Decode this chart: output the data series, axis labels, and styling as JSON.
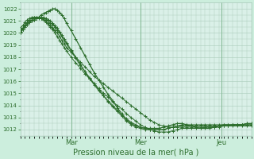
{
  "background_color": "#cceedd",
  "plot_bg_color": "#daf0e8",
  "grid_color": "#aaccbb",
  "line_color": "#2d6e2d",
  "marker_color": "#2d6e2d",
  "title": "Pression niveau de la mer( hPa )",
  "x_labels": [
    "Mar",
    "Mer",
    "Jeu"
  ],
  "ylim": [
    1011.5,
    1022.5
  ],
  "yticks": [
    1012,
    1013,
    1014,
    1015,
    1016,
    1017,
    1018,
    1019,
    1020,
    1021,
    1022
  ],
  "vline_x": [
    0.22,
    0.52,
    0.87
  ],
  "xlim": [
    0.0,
    1.0
  ],
  "lines": [
    [
      0.0,
      1020.2,
      0.01,
      1020.4,
      0.02,
      1020.7,
      0.03,
      1020.9,
      0.04,
      1021.1,
      0.05,
      1021.2,
      0.06,
      1021.3,
      0.07,
      1021.3,
      0.08,
      1021.3,
      0.09,
      1021.2,
      0.1,
      1021.1,
      0.11,
      1021.0,
      0.12,
      1020.8,
      0.13,
      1020.6,
      0.14,
      1020.4,
      0.15,
      1020.2,
      0.16,
      1020.0,
      0.17,
      1019.7,
      0.18,
      1019.4,
      0.19,
      1019.1,
      0.2,
      1018.8,
      0.22,
      1018.4,
      0.24,
      1018.0,
      0.26,
      1017.6,
      0.28,
      1017.2,
      0.3,
      1016.8,
      0.32,
      1016.4,
      0.34,
      1016.1,
      0.36,
      1015.8,
      0.38,
      1015.5,
      0.4,
      1015.2,
      0.42,
      1014.9,
      0.44,
      1014.6,
      0.46,
      1014.3,
      0.48,
      1014.0,
      0.5,
      1013.7,
      0.52,
      1013.4,
      0.54,
      1013.1,
      0.56,
      1012.8,
      0.58,
      1012.6,
      0.6,
      1012.4,
      0.62,
      1012.3,
      0.64,
      1012.2,
      0.66,
      1012.2,
      0.68,
      1012.2,
      0.7,
      1012.2,
      0.72,
      1012.2,
      0.74,
      1012.2,
      0.76,
      1012.2,
      0.78,
      1012.2,
      0.8,
      1012.2,
      0.82,
      1012.2,
      0.84,
      1012.2,
      0.86,
      1012.2,
      0.88,
      1012.3,
      0.9,
      1012.3,
      0.92,
      1012.3,
      0.94,
      1012.3,
      0.96,
      1012.3,
      0.98,
      1012.3,
      1.0,
      1012.3
    ],
    [
      0.0,
      1020.4,
      0.01,
      1020.6,
      0.02,
      1020.9,
      0.03,
      1021.1,
      0.04,
      1021.2,
      0.05,
      1021.3,
      0.06,
      1021.3,
      0.07,
      1021.3,
      0.08,
      1021.3,
      0.09,
      1021.2,
      0.1,
      1021.1,
      0.11,
      1020.9,
      0.12,
      1020.7,
      0.13,
      1020.5,
      0.14,
      1020.3,
      0.15,
      1020.0,
      0.16,
      1019.7,
      0.17,
      1019.4,
      0.18,
      1019.1,
      0.19,
      1018.8,
      0.2,
      1018.5,
      0.22,
      1018.0,
      0.24,
      1017.5,
      0.26,
      1017.1,
      0.28,
      1016.6,
      0.3,
      1016.2,
      0.32,
      1015.8,
      0.34,
      1015.4,
      0.36,
      1015.0,
      0.38,
      1014.7,
      0.4,
      1014.3,
      0.42,
      1014.0,
      0.44,
      1013.7,
      0.46,
      1013.3,
      0.48,
      1013.0,
      0.5,
      1012.7,
      0.52,
      1012.4,
      0.54,
      1012.2,
      0.56,
      1012.0,
      0.58,
      1011.9,
      0.6,
      1011.8,
      0.62,
      1011.8,
      0.64,
      1011.8,
      0.66,
      1011.9,
      0.68,
      1012.0,
      0.7,
      1012.1,
      0.72,
      1012.1,
      0.74,
      1012.1,
      0.76,
      1012.1,
      0.78,
      1012.1,
      0.8,
      1012.2,
      0.82,
      1012.2,
      0.84,
      1012.2,
      0.86,
      1012.3,
      0.88,
      1012.3,
      0.9,
      1012.3,
      0.92,
      1012.4,
      0.94,
      1012.4,
      0.96,
      1012.4,
      0.98,
      1012.4,
      1.0,
      1012.4
    ],
    [
      0.0,
      1020.0,
      0.01,
      1020.3,
      0.02,
      1020.6,
      0.03,
      1020.8,
      0.04,
      1021.0,
      0.05,
      1021.1,
      0.06,
      1021.2,
      0.07,
      1021.2,
      0.08,
      1021.3,
      0.09,
      1021.3,
      0.1,
      1021.3,
      0.11,
      1021.2,
      0.12,
      1021.1,
      0.13,
      1021.0,
      0.14,
      1020.8,
      0.15,
      1020.6,
      0.16,
      1020.4,
      0.17,
      1020.1,
      0.18,
      1019.8,
      0.19,
      1019.5,
      0.2,
      1019.2,
      0.22,
      1018.6,
      0.24,
      1018.0,
      0.26,
      1017.4,
      0.28,
      1016.8,
      0.3,
      1016.3,
      0.32,
      1015.8,
      0.34,
      1015.3,
      0.36,
      1014.8,
      0.38,
      1014.4,
      0.4,
      1014.0,
      0.42,
      1013.6,
      0.44,
      1013.2,
      0.46,
      1012.9,
      0.48,
      1012.6,
      0.5,
      1012.4,
      0.52,
      1012.2,
      0.54,
      1012.1,
      0.56,
      1012.0,
      0.58,
      1012.0,
      0.6,
      1012.0,
      0.62,
      1012.0,
      0.64,
      1012.1,
      0.66,
      1012.2,
      0.68,
      1012.3,
      0.7,
      1012.4,
      0.72,
      1012.4,
      0.74,
      1012.4,
      0.76,
      1012.4,
      0.78,
      1012.4,
      0.8,
      1012.4,
      0.82,
      1012.4,
      0.84,
      1012.4,
      0.86,
      1012.4,
      0.88,
      1012.4,
      0.9,
      1012.4,
      0.92,
      1012.4,
      0.94,
      1012.4,
      0.96,
      1012.4,
      0.98,
      1012.5,
      1.0,
      1012.5
    ],
    [
      0.0,
      1020.1,
      0.01,
      1020.3,
      0.02,
      1020.5,
      0.03,
      1020.7,
      0.04,
      1020.9,
      0.05,
      1021.0,
      0.06,
      1021.1,
      0.07,
      1021.2,
      0.08,
      1021.2,
      0.09,
      1021.2,
      0.1,
      1021.2,
      0.11,
      1021.1,
      0.12,
      1021.0,
      0.13,
      1020.8,
      0.14,
      1020.7,
      0.15,
      1020.5,
      0.16,
      1020.2,
      0.17,
      1020.0,
      0.18,
      1019.7,
      0.19,
      1019.4,
      0.2,
      1019.1,
      0.22,
      1018.5,
      0.24,
      1017.9,
      0.26,
      1017.3,
      0.28,
      1016.8,
      0.3,
      1016.2,
      0.32,
      1015.7,
      0.34,
      1015.2,
      0.36,
      1014.8,
      0.38,
      1014.3,
      0.4,
      1013.9,
      0.42,
      1013.5,
      0.44,
      1013.1,
      0.46,
      1012.7,
      0.48,
      1012.4,
      0.5,
      1012.2,
      0.52,
      1012.1,
      0.54,
      1012.0,
      0.56,
      1012.0,
      0.58,
      1012.0,
      0.6,
      1012.0,
      0.62,
      1012.0,
      0.64,
      1012.1,
      0.66,
      1012.2,
      0.68,
      1012.3,
      0.7,
      1012.3,
      0.72,
      1012.3,
      0.74,
      1012.3,
      0.76,
      1012.3,
      0.78,
      1012.3,
      0.8,
      1012.3,
      0.82,
      1012.3,
      0.84,
      1012.3,
      0.86,
      1012.3,
      0.88,
      1012.3,
      0.9,
      1012.3,
      0.92,
      1012.4,
      0.94,
      1012.4,
      0.96,
      1012.4,
      0.98,
      1012.4,
      1.0,
      1012.4
    ],
    [
      0.0,
      1020.0,
      0.01,
      1020.3,
      0.02,
      1020.5,
      0.03,
      1020.7,
      0.04,
      1020.9,
      0.05,
      1021.0,
      0.06,
      1021.1,
      0.07,
      1021.2,
      0.08,
      1021.3,
      0.09,
      1021.5,
      0.1,
      1021.6,
      0.11,
      1021.7,
      0.12,
      1021.8,
      0.13,
      1021.9,
      0.14,
      1022.0,
      0.15,
      1022.0,
      0.16,
      1021.9,
      0.17,
      1021.7,
      0.18,
      1021.5,
      0.19,
      1021.2,
      0.2,
      1020.8,
      0.22,
      1020.2,
      0.24,
      1019.5,
      0.26,
      1018.8,
      0.28,
      1018.1,
      0.3,
      1017.4,
      0.32,
      1016.7,
      0.34,
      1016.1,
      0.36,
      1015.5,
      0.38,
      1014.9,
      0.4,
      1014.4,
      0.42,
      1013.8,
      0.44,
      1013.3,
      0.46,
      1012.8,
      0.48,
      1012.5,
      0.5,
      1012.3,
      0.52,
      1012.2,
      0.54,
      1012.1,
      0.56,
      1012.1,
      0.58,
      1012.1,
      0.6,
      1012.1,
      0.62,
      1012.2,
      0.64,
      1012.3,
      0.66,
      1012.4,
      0.68,
      1012.5,
      0.7,
      1012.5,
      0.72,
      1012.4,
      0.74,
      1012.3,
      0.76,
      1012.2,
      0.78,
      1012.1,
      0.8,
      1012.1,
      0.82,
      1012.1,
      0.84,
      1012.2,
      0.86,
      1012.3,
      0.88,
      1012.4,
      0.9,
      1012.4,
      0.92,
      1012.4,
      0.94,
      1012.4,
      0.96,
      1012.4,
      0.98,
      1012.5,
      1.0,
      1012.5
    ]
  ]
}
